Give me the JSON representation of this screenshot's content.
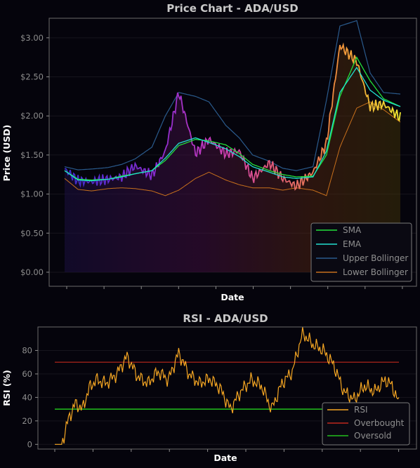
{
  "price_chart": {
    "title": "Price Chart - ADA/USD",
    "xlabel": "Date",
    "ylabel": "Price (USD)",
    "y_ticks": [
      "$0.00",
      "$0.50",
      "$1.00",
      "$1.50",
      "$2.00",
      "$2.50",
      "$3.00"
    ],
    "legend": [
      "SMA",
      "EMA",
      "Upper Bollinger",
      "Lower Bollinger"
    ]
  },
  "rsi_chart": {
    "title": "RSI - ADA/USD",
    "xlabel": "Date",
    "ylabel": "RSI (%)",
    "y_ticks": [
      "0",
      "20",
      "40",
      "60",
      "80"
    ],
    "legend": [
      "RSI",
      "Overbought",
      "Oversold"
    ]
  },
  "colors": {
    "background": "#05040c",
    "sma": "#22e03a",
    "ema": "#22e0d0",
    "upper_bollinger": "#2a5a8c",
    "lower_bollinger": "#c8701c",
    "rsi": "#f5a623",
    "overbought": "#c0281c",
    "oversold": "#22c01c"
  },
  "chart_data": [
    {
      "type": "line",
      "title": "Price Chart - ADA/USD",
      "xlabel": "Date",
      "ylabel": "Price (USD)",
      "ylim": [
        -0.18,
        3.25
      ],
      "x_index": [
        0,
        4,
        8,
        13,
        17,
        21,
        26,
        30,
        34,
        39,
        43,
        48,
        52,
        56,
        61,
        65,
        69,
        74,
        78,
        82,
        87,
        91,
        95,
        100
      ],
      "series": [
        {
          "name": "Price",
          "values": [
            1.32,
            1.17,
            1.16,
            1.19,
            1.22,
            1.36,
            1.24,
            1.55,
            2.3,
            1.52,
            1.7,
            1.52,
            1.55,
            1.2,
            1.4,
            1.2,
            1.1,
            1.28,
            1.65,
            2.9,
            2.7,
            2.12,
            2.15,
            1.98
          ]
        },
        {
          "name": "SMA",
          "values": [
            1.3,
            1.19,
            1.18,
            1.19,
            1.23,
            1.26,
            1.3,
            1.43,
            1.62,
            1.7,
            1.68,
            1.63,
            1.52,
            1.38,
            1.3,
            1.25,
            1.22,
            1.23,
            1.5,
            2.25,
            2.75,
            2.45,
            2.22,
            2.12
          ]
        },
        {
          "name": "EMA",
          "values": [
            1.3,
            1.18,
            1.17,
            1.19,
            1.22,
            1.26,
            1.3,
            1.46,
            1.65,
            1.72,
            1.66,
            1.58,
            1.48,
            1.35,
            1.28,
            1.22,
            1.2,
            1.22,
            1.55,
            2.3,
            2.62,
            2.33,
            2.2,
            2.12
          ]
        },
        {
          "name": "Upper Bollinger",
          "values": [
            1.35,
            1.31,
            1.32,
            1.34,
            1.38,
            1.45,
            1.6,
            2.0,
            2.3,
            2.25,
            2.18,
            1.88,
            1.72,
            1.5,
            1.42,
            1.33,
            1.3,
            1.35,
            2.2,
            3.15,
            3.22,
            2.55,
            2.3,
            2.28
          ]
        },
        {
          "name": "Lower Bollinger",
          "values": [
            1.2,
            1.06,
            1.04,
            1.07,
            1.08,
            1.07,
            1.04,
            0.98,
            1.05,
            1.2,
            1.28,
            1.18,
            1.12,
            1.08,
            1.08,
            1.05,
            1.08,
            1.05,
            0.98,
            1.6,
            2.1,
            2.18,
            2.08,
            1.92
          ]
        }
      ]
    },
    {
      "type": "line",
      "title": "RSI - ADA/USD",
      "xlabel": "Date",
      "ylabel": "RSI (%)",
      "ylim": [
        -4,
        100
      ],
      "x_index": [
        0,
        2,
        4,
        6,
        8,
        10,
        12,
        15,
        18,
        21,
        24,
        27,
        30,
        33,
        36,
        39,
        42,
        45,
        48,
        51,
        54,
        57,
        60,
        63,
        66,
        69,
        72,
        75,
        78,
        81,
        84,
        87,
        90,
        93,
        96,
        98,
        100
      ],
      "series": [
        {
          "name": "RSI",
          "values": [
            0,
            0,
            22,
            35,
            30,
            48,
            55,
            52,
            60,
            75,
            58,
            52,
            62,
            55,
            78,
            60,
            52,
            56,
            48,
            30,
            45,
            55,
            50,
            30,
            52,
            62,
            95,
            85,
            80,
            68,
            45,
            38,
            50,
            45,
            55,
            50,
            35
          ]
        },
        {
          "name": "Overbought",
          "values": [
            70,
            70
          ]
        },
        {
          "name": "Oversold",
          "values": [
            30,
            30
          ]
        }
      ]
    }
  ]
}
